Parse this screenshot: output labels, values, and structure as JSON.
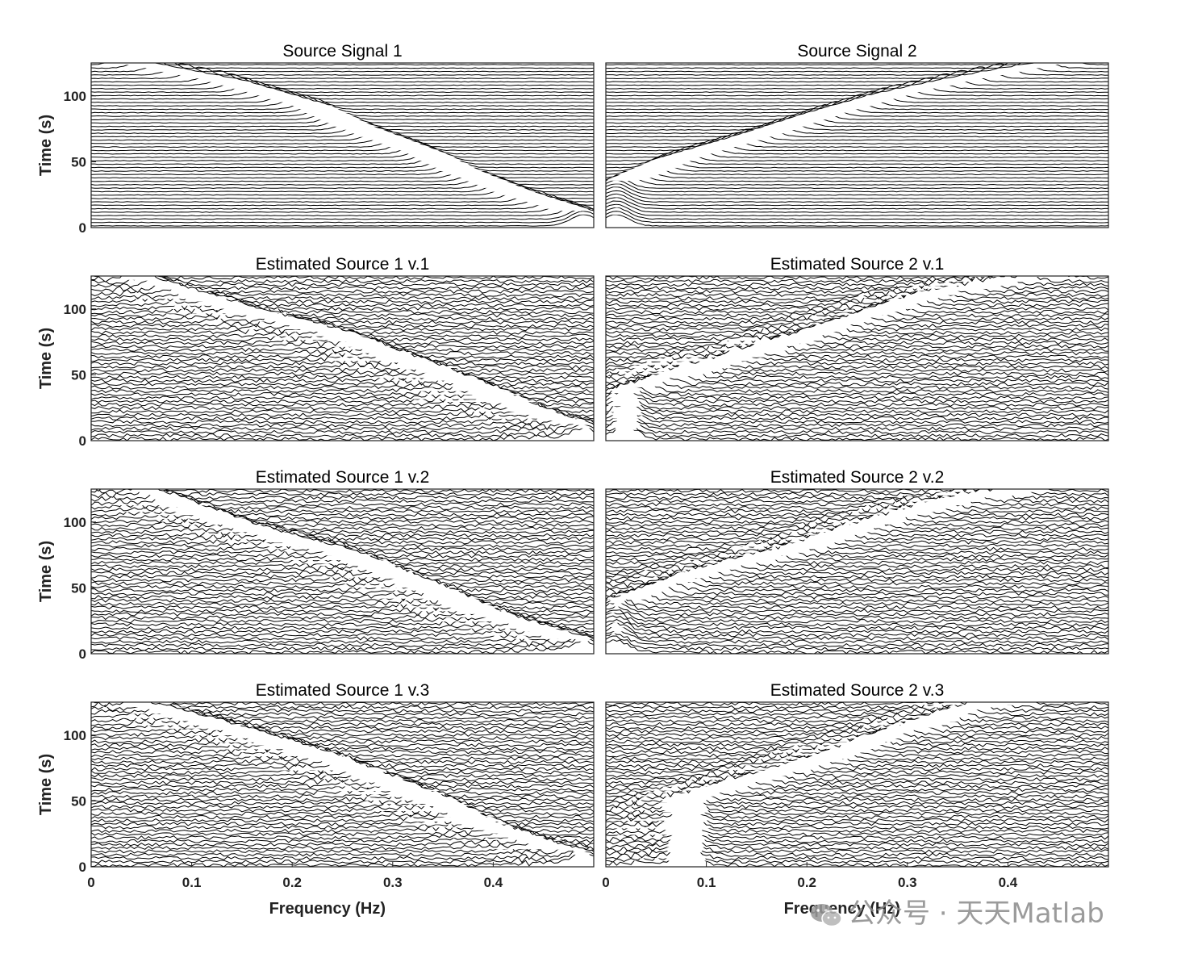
{
  "chart_data": [
    {
      "type": "waterfall",
      "title": "Source Signal 1",
      "ylabel": "Time (s)",
      "xlabel": "",
      "xlim": [
        0,
        0.5
      ],
      "ylim": [
        0,
        125
      ],
      "yticks": [
        0,
        50,
        100
      ],
      "xticks": [],
      "grid": false,
      "ridges": [
        {
          "t": 125,
          "f": 0.03
        },
        {
          "t": 110,
          "f": 0.13
        },
        {
          "t": 90,
          "f": 0.22
        },
        {
          "t": 75,
          "f": 0.26
        },
        {
          "t": 55,
          "f": 0.33
        },
        {
          "t": 40,
          "f": 0.37
        },
        {
          "t": 25,
          "f": 0.42
        },
        {
          "t": 8,
          "f": 0.49
        }
      ]
    },
    {
      "type": "waterfall",
      "title": "Source Signal 2",
      "ylabel": "",
      "xlabel": "",
      "xlim": [
        0,
        0.5
      ],
      "ylim": [
        0,
        125
      ],
      "yticks": [],
      "xticks": [],
      "grid": false,
      "ridges": [
        {
          "t": 30,
          "f": 0.01
        },
        {
          "t": 50,
          "f": 0.07
        },
        {
          "t": 70,
          "f": 0.16
        },
        {
          "t": 85,
          "f": 0.22
        },
        {
          "t": 100,
          "f": 0.29
        },
        {
          "t": 110,
          "f": 0.35
        },
        {
          "t": 120,
          "f": 0.42
        },
        {
          "t": 125,
          "f": 0.46
        }
      ]
    },
    {
      "type": "waterfall",
      "title": "Estimated Source 1 v.1",
      "ylabel": "Time (s)",
      "xlabel": "",
      "xlim": [
        0,
        0.5
      ],
      "ylim": [
        0,
        125
      ],
      "yticks": [
        0,
        50,
        100
      ],
      "xticks": [],
      "grid": false,
      "ridges": [
        {
          "t": 125,
          "f": 0.03
        },
        {
          "t": 100,
          "f": 0.14
        },
        {
          "t": 80,
          "f": 0.24
        },
        {
          "t": 60,
          "f": 0.31
        },
        {
          "t": 40,
          "f": 0.38
        },
        {
          "t": 20,
          "f": 0.44
        },
        {
          "t": 8,
          "f": 0.49
        }
      ]
    },
    {
      "type": "waterfall",
      "title": "Estimated Source 2 v.1",
      "ylabel": "",
      "xlabel": "",
      "xlim": [
        0,
        0.5
      ],
      "ylim": [
        0,
        125
      ],
      "yticks": [],
      "xticks": [],
      "grid": false,
      "ridges": [
        {
          "t": 35,
          "f": 0.02
        },
        {
          "t": 55,
          "f": 0.1
        },
        {
          "t": 75,
          "f": 0.19
        },
        {
          "t": 95,
          "f": 0.27
        },
        {
          "t": 110,
          "f": 0.33
        },
        {
          "t": 120,
          "f": 0.4
        },
        {
          "t": 125,
          "f": 0.45
        }
      ]
    },
    {
      "type": "waterfall",
      "title": "Estimated Source 1 v.2",
      "ylabel": "Time (s)",
      "xlabel": "",
      "xlim": [
        0,
        0.5
      ],
      "ylim": [
        0,
        125
      ],
      "yticks": [
        0,
        50,
        100
      ],
      "xticks": [],
      "grid": false,
      "ridges": [
        {
          "t": 125,
          "f": 0.04
        },
        {
          "t": 95,
          "f": 0.15
        },
        {
          "t": 75,
          "f": 0.25
        },
        {
          "t": 50,
          "f": 0.33
        },
        {
          "t": 30,
          "f": 0.39
        },
        {
          "t": 15,
          "f": 0.45
        },
        {
          "t": 8,
          "f": 0.49
        }
      ]
    },
    {
      "type": "waterfall",
      "title": "Estimated Source 2 v.2",
      "ylabel": "",
      "xlabel": "",
      "xlim": [
        0,
        0.5
      ],
      "ylim": [
        0,
        125
      ],
      "yticks": [],
      "xticks": [],
      "grid": false,
      "ridges": [
        {
          "t": 35,
          "f": 0.01
        },
        {
          "t": 60,
          "f": 0.1
        },
        {
          "t": 80,
          "f": 0.2
        },
        {
          "t": 100,
          "f": 0.28
        },
        {
          "t": 115,
          "f": 0.35
        },
        {
          "t": 125,
          "f": 0.43
        }
      ]
    },
    {
      "type": "waterfall",
      "title": "Estimated Source 1 v.3",
      "ylabel": "Time (s)",
      "xlabel": "Frequency (Hz)",
      "xlim": [
        0,
        0.5
      ],
      "ylim": [
        0,
        125
      ],
      "yticks": [
        0,
        50,
        100
      ],
      "xticks": [
        0,
        0.1,
        0.2,
        0.3,
        0.4
      ],
      "grid": false,
      "ridges": [
        {
          "t": 125,
          "f": 0.03
        },
        {
          "t": 105,
          "f": 0.13
        },
        {
          "t": 85,
          "f": 0.22
        },
        {
          "t": 70,
          "f": 0.27
        },
        {
          "t": 50,
          "f": 0.34
        },
        {
          "t": 30,
          "f": 0.39
        },
        {
          "t": 15,
          "f": 0.45
        },
        {
          "t": 8,
          "f": 0.49
        }
      ]
    },
    {
      "type": "waterfall",
      "title": "Estimated Source 2 v.3",
      "ylabel": "",
      "xlabel": "Frequency (Hz)",
      "xlim": [
        0,
        0.5
      ],
      "ylim": [
        0,
        125
      ],
      "yticks": [],
      "xticks": [
        0,
        0.1,
        0.2,
        0.3,
        0.4
      ],
      "grid": false,
      "ridges": [
        {
          "t": 50,
          "f": 0.08
        },
        {
          "t": 65,
          "f": 0.15
        },
        {
          "t": 80,
          "f": 0.22
        },
        {
          "t": 95,
          "f": 0.27
        },
        {
          "t": 110,
          "f": 0.33
        },
        {
          "t": 120,
          "f": 0.37
        },
        {
          "t": 125,
          "f": 0.41
        }
      ]
    }
  ],
  "watermark": {
    "text": "公众号 · 天天Matlab",
    "icon": "wechat-icon",
    "color": "#8a8a8a"
  }
}
